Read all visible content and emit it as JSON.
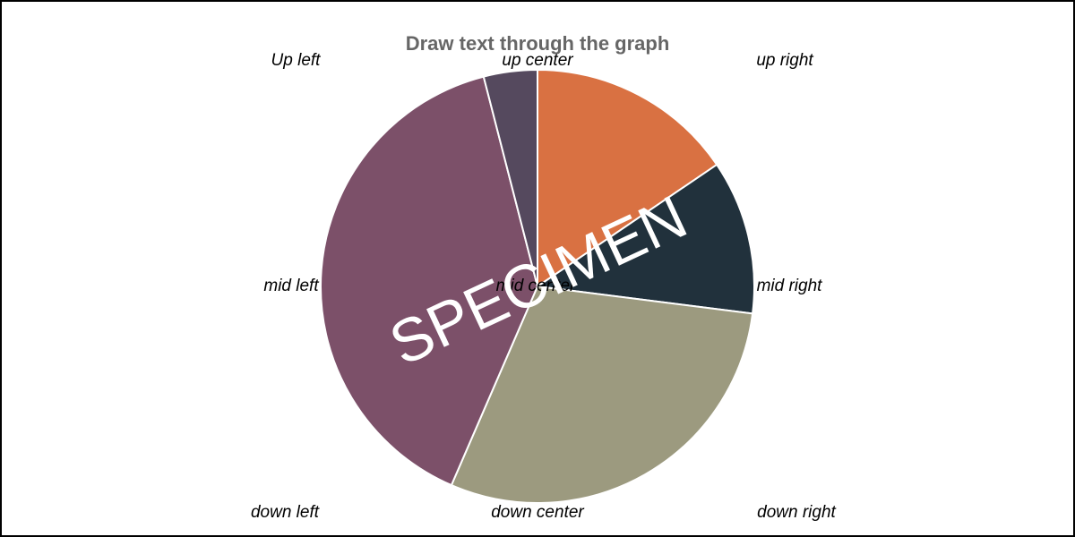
{
  "chart_data": {
    "type": "pie",
    "title": "Draw text through the graph",
    "values": [
      15.5,
      11.5,
      29.5,
      39.5,
      4.0
    ],
    "colors": [
      "#d97142",
      "#21313c",
      "#9c9a7f",
      "#7c5069",
      "#55495e"
    ],
    "start_angle_deg": 0,
    "direction": "clockwise",
    "slice_stroke": "#ffffff",
    "position_labels": {
      "up_left": "Up left",
      "up_center": "up center",
      "up_right": "up right",
      "mid_left": "mid left",
      "mid_center": "mid center",
      "mid_right": "mid right",
      "down_left": "down left",
      "down_center": "down center",
      "down_right": "down right"
    },
    "watermark": {
      "text": "SPECIMEN",
      "rotation_deg": -25,
      "color": "#ffffff"
    }
  }
}
